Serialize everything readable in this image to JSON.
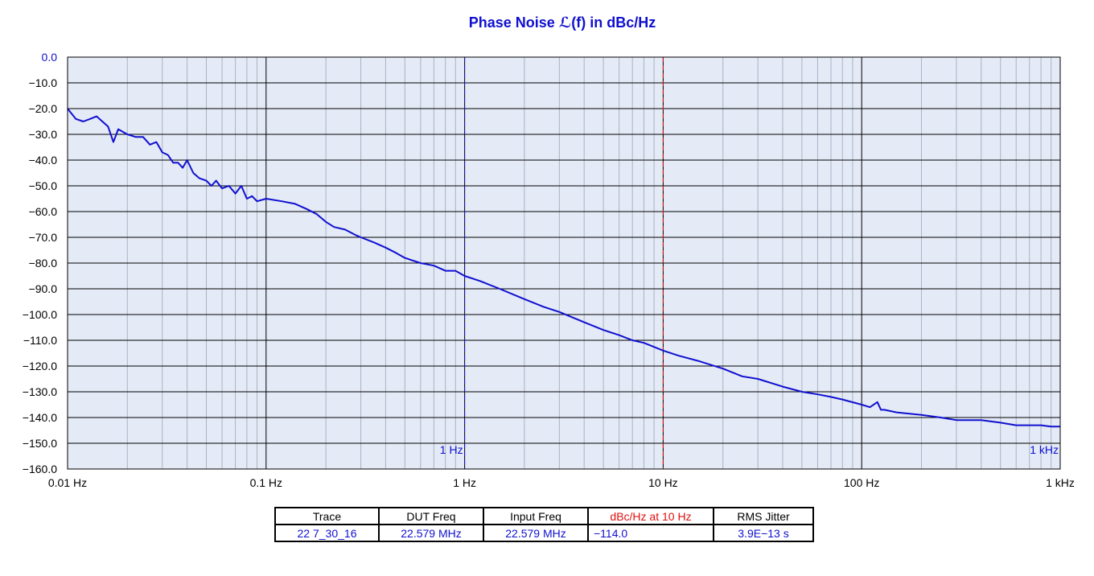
{
  "chart_data": {
    "type": "line",
    "title": "Phase Noise ℒ(f) in dBc/Hz",
    "x_scale": "log",
    "xlim": [
      0.01,
      1000
    ],
    "ylim": [
      -160,
      0
    ],
    "grid": true,
    "x_ticks": [
      {
        "value": 0.01,
        "label": "0.01 Hz"
      },
      {
        "value": 0.1,
        "label": "0.1 Hz"
      },
      {
        "value": 1,
        "label": "1 Hz"
      },
      {
        "value": 10,
        "label": "10 Hz"
      },
      {
        "value": 100,
        "label": "100 Hz"
      },
      {
        "value": 1000,
        "label": "1 kHz"
      }
    ],
    "y_ticks": [
      {
        "value": 0,
        "label": "0.0"
      },
      {
        "value": -10,
        "label": "−10.0"
      },
      {
        "value": -20,
        "label": "−20.0"
      },
      {
        "value": -30,
        "label": "−30.0"
      },
      {
        "value": -40,
        "label": "−40.0"
      },
      {
        "value": -50,
        "label": "−50.0"
      },
      {
        "value": -60,
        "label": "−60.0"
      },
      {
        "value": -70,
        "label": "−70.0"
      },
      {
        "value": -80,
        "label": "−80.0"
      },
      {
        "value": -90,
        "label": "−90.0"
      },
      {
        "value": -100,
        "label": "−100.0"
      },
      {
        "value": -110,
        "label": "−110.0"
      },
      {
        "value": -120,
        "label": "−120.0"
      },
      {
        "value": -130,
        "label": "−130.0"
      },
      {
        "value": -140,
        "label": "−140.0"
      },
      {
        "value": -150,
        "label": "−150.0"
      },
      {
        "value": -160,
        "label": "−160.0"
      }
    ],
    "markers": [
      {
        "x": 1,
        "label": "1 Hz",
        "color": "#1010d0"
      },
      {
        "x": 10,
        "label": "",
        "color": "#e01010"
      },
      {
        "x": 1000,
        "label": "1 kHz",
        "color": "#1010d0"
      }
    ],
    "series": [
      {
        "color": "#1010d0",
        "x": [
          0.01,
          0.011,
          0.012,
          0.013,
          0.014,
          0.016,
          0.017,
          0.018,
          0.02,
          0.022,
          0.024,
          0.026,
          0.028,
          0.03,
          0.032,
          0.034,
          0.036,
          0.038,
          0.04,
          0.043,
          0.046,
          0.05,
          0.053,
          0.056,
          0.06,
          0.065,
          0.07,
          0.075,
          0.08,
          0.085,
          0.09,
          0.1,
          0.12,
          0.14,
          0.16,
          0.18,
          0.2,
          0.22,
          0.25,
          0.28,
          0.3,
          0.35,
          0.4,
          0.45,
          0.5,
          0.6,
          0.7,
          0.8,
          0.9,
          1.0,
          1.2,
          1.5,
          2.0,
          2.5,
          3.0,
          4.0,
          5.0,
          6.0,
          7.0,
          8.0,
          10,
          12,
          15,
          20,
          25,
          30,
          40,
          50,
          60,
          70,
          80,
          100,
          110,
          120,
          125,
          130,
          150,
          200,
          250,
          300,
          400,
          500,
          600,
          700,
          800,
          900,
          1000
        ],
        "values": [
          -20,
          -24,
          -25,
          -24,
          -23,
          -27,
          -33,
          -28,
          -30,
          -31,
          -31,
          -34,
          -33,
          -37,
          -38,
          -41,
          -41,
          -43,
          -40,
          -45,
          -47,
          -48,
          -50,
          -48,
          -51,
          -50,
          -53,
          -50,
          -55,
          -54,
          -56,
          -55,
          -56,
          -57,
          -59,
          -61,
          -64,
          -66,
          -67,
          -69,
          -70,
          -72,
          -74,
          -76,
          -78,
          -80,
          -81,
          -83,
          -83,
          -85,
          -87,
          -90,
          -94,
          -97,
          -99,
          -103,
          -106,
          -108,
          -110,
          -111,
          -114,
          -116,
          -118,
          -121,
          -124,
          -125,
          -128,
          -130,
          -131,
          -132,
          -133,
          -135,
          -136,
          -134,
          -137,
          -137,
          -138,
          -139,
          -140,
          -141,
          -141,
          -142,
          -143,
          -143,
          -143,
          -143.5,
          -143.5
        ]
      }
    ]
  },
  "table": {
    "headers": [
      "Trace",
      "DUT Freq",
      "Input Freq",
      "dBc/Hz at 10 Hz",
      "RMS Jitter"
    ],
    "row": [
      "22 7_30_16",
      "22.579 MHz",
      "22.579 MHz",
      "−114.0",
      "3.9E−13 s"
    ]
  }
}
